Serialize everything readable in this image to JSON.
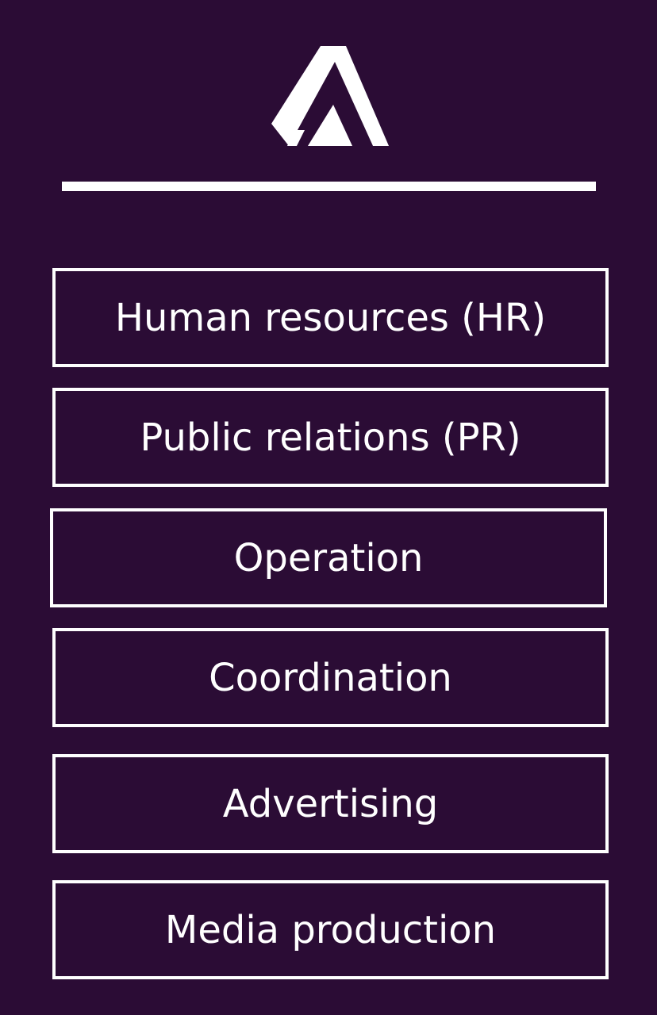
{
  "colors": {
    "background": "#2b0c35",
    "foreground": "#ffffff"
  },
  "logo": {
    "icon": "triangle-logo-icon"
  },
  "menu": {
    "items": [
      {
        "label": "Human resources (HR)"
      },
      {
        "label": "Public relations (PR)"
      },
      {
        "label": "Operation"
      },
      {
        "label": "Coordination"
      },
      {
        "label": "Advertising"
      },
      {
        "label": "Media production"
      }
    ]
  }
}
